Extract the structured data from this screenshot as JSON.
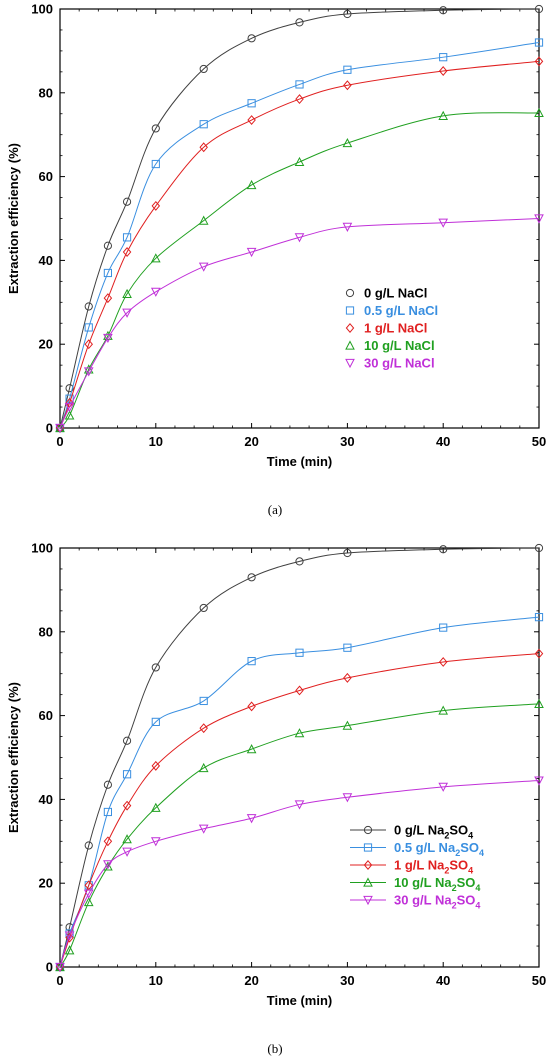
{
  "chart_data": [
    {
      "type": "line",
      "panel_label": "(a)",
      "xlabel": "Time (min)",
      "ylabel": "Extraction efficiency (%)",
      "xlim": [
        0,
        50
      ],
      "ylim": [
        0,
        100
      ],
      "xticks": [
        0,
        10,
        20,
        30,
        40,
        50
      ],
      "yticks": [
        0,
        20,
        40,
        60,
        80,
        100
      ],
      "legend_placement": "center-right",
      "series": [
        {
          "name": "0 g/L NaCl",
          "color": "#404040",
          "marker": "circle",
          "x": [
            0,
            1,
            3,
            5,
            7,
            10,
            15,
            20,
            25,
            30,
            40,
            50
          ],
          "y": [
            0,
            9.5,
            29,
            43.5,
            54,
            71.5,
            85.7,
            93,
            96.8,
            98.8,
            99.7,
            100
          ]
        },
        {
          "name": "0.5 g/L NaCl",
          "color": "#3a8fe0",
          "marker": "square",
          "x": [
            0,
            1,
            3,
            5,
            7,
            10,
            15,
            20,
            25,
            30,
            40,
            50
          ],
          "y": [
            0,
            7,
            24,
            37,
            45.5,
            63,
            72.5,
            77.5,
            82,
            85.5,
            88.5,
            92
          ]
        },
        {
          "name": "1 g/L NaCl",
          "color": "#e02020",
          "marker": "diamond",
          "x": [
            0,
            1,
            3,
            5,
            7,
            10,
            15,
            20,
            25,
            30,
            40,
            50
          ],
          "y": [
            0,
            6,
            20,
            31,
            42,
            53,
            67,
            73.5,
            78.5,
            81.8,
            85.2,
            87.5
          ]
        },
        {
          "name": "10 g/L NaCl",
          "color": "#20a020",
          "marker": "triangle-up",
          "x": [
            0,
            1,
            3,
            5,
            7,
            10,
            15,
            20,
            25,
            30,
            40,
            50
          ],
          "y": [
            0,
            3,
            14,
            22,
            32,
            40.5,
            49.5,
            58,
            63.5,
            68,
            74.5,
            75.2
          ]
        },
        {
          "name": "30 g/L NaCl",
          "color": "#c030d8",
          "marker": "triangle-down",
          "x": [
            0,
            1,
            3,
            5,
            7,
            10,
            15,
            20,
            25,
            30,
            40,
            50
          ],
          "y": [
            0,
            5,
            13.5,
            21.5,
            27.5,
            32.5,
            38.5,
            42,
            45.5,
            48,
            49,
            50
          ]
        }
      ]
    },
    {
      "type": "line",
      "panel_label": "(b)",
      "xlabel": "Time (min)",
      "ylabel": "Extraction efficiency (%)",
      "xlim": [
        0,
        50
      ],
      "ylim": [
        0,
        100
      ],
      "xticks": [
        0,
        10,
        20,
        30,
        40,
        50
      ],
      "yticks": [
        0,
        20,
        40,
        60,
        80,
        100
      ],
      "legend_placement": "center-right",
      "series": [
        {
          "name": "0 g/L Na",
          "name_sub1": "2",
          "name_mid": "SO",
          "name_sub2": "4",
          "color": "#404040",
          "marker": "circle",
          "x": [
            0,
            1,
            3,
            5,
            7,
            10,
            15,
            20,
            25,
            30,
            40,
            50
          ],
          "y": [
            0,
            9.5,
            29,
            43.5,
            54,
            71.5,
            85.7,
            93,
            96.8,
            98.8,
            99.7,
            100
          ]
        },
        {
          "name": "0.5 g/L Na",
          "name_sub1": "2",
          "name_mid": "SO",
          "name_sub2": "4",
          "color": "#3a8fe0",
          "marker": "square",
          "x": [
            0,
            1,
            3,
            5,
            7,
            10,
            15,
            20,
            25,
            30,
            40,
            50
          ],
          "y": [
            0,
            8,
            19.5,
            37,
            46,
            58.5,
            63.5,
            73,
            75,
            76.2,
            81,
            83.5
          ]
        },
        {
          "name": "1 g/L Na",
          "name_sub1": "2",
          "name_mid": "SO",
          "name_sub2": "4",
          "color": "#e02020",
          "marker": "diamond",
          "x": [
            0,
            1,
            3,
            5,
            7,
            10,
            15,
            20,
            25,
            30,
            40,
            50
          ],
          "y": [
            0,
            7,
            19.5,
            30,
            38.5,
            48,
            57,
            62.2,
            66,
            69,
            72.8,
            74.8
          ]
        },
        {
          "name": "10 g/L Na",
          "name_sub1": "2",
          "name_mid": "SO",
          "name_sub2": "4",
          "color": "#20a020",
          "marker": "triangle-up",
          "x": [
            0,
            1,
            3,
            5,
            7,
            10,
            15,
            20,
            25,
            30,
            40,
            50
          ],
          "y": [
            0,
            4,
            15.5,
            24,
            30.5,
            38,
            47.5,
            52,
            55.8,
            57.6,
            61.2,
            62.8
          ]
        },
        {
          "name": "30 g/L Na",
          "name_sub1": "2",
          "name_mid": "SO",
          "name_sub2": "4",
          "color": "#c030d8",
          "marker": "triangle-down",
          "x": [
            0,
            1,
            3,
            5,
            7,
            10,
            15,
            20,
            25,
            30,
            40,
            50
          ],
          "y": [
            0,
            7.5,
            17.5,
            24.5,
            27.5,
            30,
            33,
            35.5,
            38.8,
            40.5,
            43,
            44.5
          ]
        }
      ]
    }
  ]
}
